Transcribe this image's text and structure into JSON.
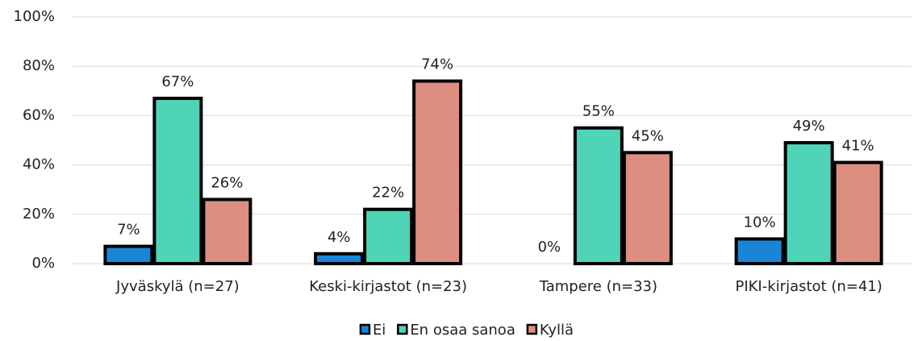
{
  "chart_data": {
    "type": "bar",
    "categories": [
      "Jyväskylä (n=27)",
      "Keski-kirjastot (n=23)",
      "Tampere (n=33)",
      "PIKI-kirjastot (n=41)"
    ],
    "series": [
      {
        "name": "Ei",
        "color": "#1a85d6",
        "values": [
          7,
          4,
          0,
          10
        ],
        "value_labels": [
          "7%",
          "4%",
          "0%",
          "10%"
        ]
      },
      {
        "name": "En osaa sanoa",
        "color": "#4fd4b8",
        "values": [
          67,
          22,
          55,
          49
        ],
        "value_labels": [
          "67%",
          "22%",
          "55%",
          "49%"
        ]
      },
      {
        "name": "Kyllä",
        "color": "#dc8e80",
        "values": [
          26,
          74,
          45,
          41
        ],
        "value_labels": [
          "26%",
          "74%",
          "45%",
          "41%"
        ]
      }
    ],
    "ylim": [
      0,
      100
    ],
    "yticks": [
      {
        "value": 0,
        "label": "0%"
      },
      {
        "value": 20,
        "label": "20%"
      },
      {
        "value": 40,
        "label": "40%"
      },
      {
        "value": 60,
        "label": "60%"
      },
      {
        "value": 80,
        "label": "80%"
      },
      {
        "value": 100,
        "label": "100%"
      }
    ],
    "grid": true,
    "legend": "bottom"
  }
}
